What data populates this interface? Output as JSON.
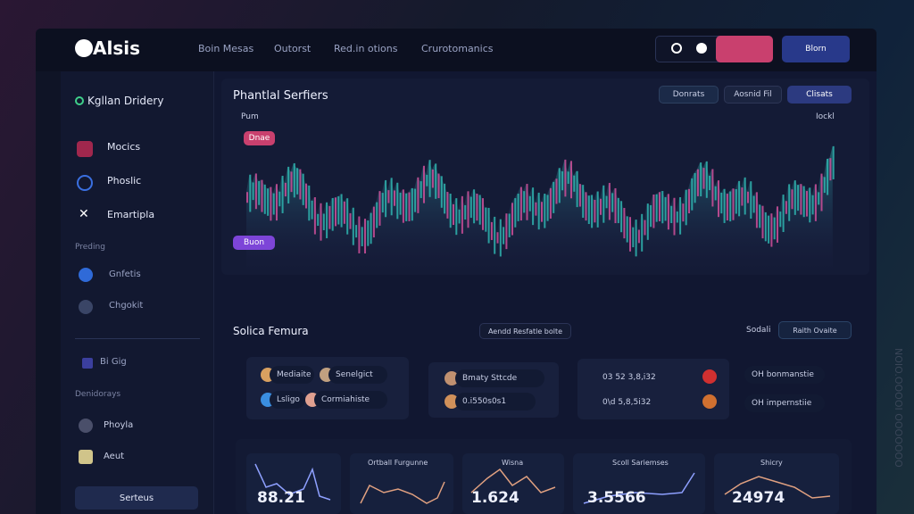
{
  "header": {
    "logo": "Alsis",
    "nav": [
      "Boin Mesas",
      "Outorst",
      "Red.in otions",
      "Crurotomanics"
    ],
    "action": "Blorn"
  },
  "sidebar": {
    "account": "Kgllan Dridery",
    "items": [
      "Mocics",
      "Phoslic",
      "Emartipla"
    ],
    "section1": "Preding",
    "items1": [
      "Gnfetis",
      "Chgokit"
    ],
    "extra": "Bi Gig",
    "section2": "Denidorays",
    "items2": [
      "Phoyla",
      "Aeut"
    ],
    "button": "Serteus"
  },
  "chart_panel": {
    "title": "Phantlal Serfiers",
    "buttons": [
      "Donrats",
      "Aosnid Fil",
      "Clisats"
    ],
    "left_label": "Pum",
    "right_label": "Iockl",
    "badge_top": "Dnae",
    "badge_bottom": "Buon"
  },
  "section": {
    "title": "Solica Femura",
    "filter": "Aendd Resfatle bolte",
    "label": "Sodali",
    "select": "Raith Ovaite",
    "card1": [
      "Mediaite",
      "Senelgict",
      "Lsligo",
      "Cormiahiste"
    ],
    "card2": [
      "Bmaty Sttcde",
      "0.i550s0s1"
    ],
    "card3": [
      "03 52 3,8,i32",
      "0\\d 5,8,5i32"
    ],
    "card4": [
      "OH bonmanstie",
      "OH impernstiie"
    ]
  },
  "metrics": [
    {
      "value": "88.21"
    },
    {
      "title": "Ortball Furgunne"
    },
    {
      "title": "Wisna",
      "value": "1.624"
    },
    {
      "title": "Scoll Sariemses",
      "value": "3.5566"
    },
    {
      "title": "Shicry",
      "value": "24974"
    }
  ],
  "watermark": "NOIO.OOOOI OOOOOOO"
}
